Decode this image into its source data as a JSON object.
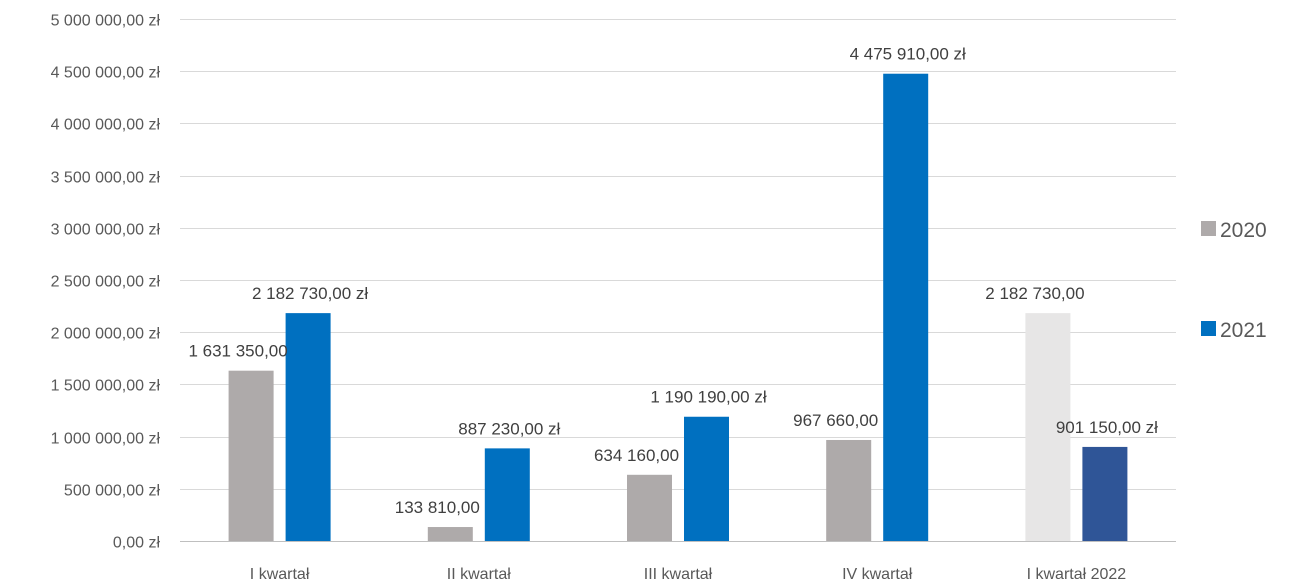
{
  "chart_data": {
    "type": "bar",
    "title": "",
    "xlabel": "",
    "ylabel": "",
    "ylim": [
      0,
      5000000
    ],
    "yticks": [
      0,
      500000,
      1000000,
      1500000,
      2000000,
      2500000,
      3000000,
      3500000,
      4000000,
      4500000,
      5000000
    ],
    "ytick_labels": [
      "0,00 zł",
      "500 000,00 zł",
      "1 000 000,00 zł",
      "1 500 000,00 zł",
      "2 000 000,00 zł",
      "2 500 000,00 zł",
      "3 000 000,00 zł",
      "3 500 000,00 zł",
      "4 000 000,00 zł",
      "4 500 000,00 zł",
      "5 000 000,00 zł"
    ],
    "grid": true,
    "legend_position": "right",
    "categories": [
      "I kwartał",
      "II kwartał",
      "III kwartał",
      "IV kwartał",
      "I kwartał 2022"
    ],
    "series": [
      {
        "name": "2020",
        "color": "#aeaaaa",
        "values": [
          1631350,
          133810,
          634160,
          967660,
          2182730
        ],
        "point_colors": [
          "#aeaaaa",
          "#aeaaaa",
          "#aeaaaa",
          "#aeaaaa",
          "#e7e6e6"
        ],
        "labels": [
          "1 631 350,00",
          "133 810,00",
          "634 160,00",
          "967 660,00",
          "2 182 730,00"
        ]
      },
      {
        "name": "2021",
        "color": "#0070c0",
        "values": [
          2182730,
          887230,
          1190190,
          4475910,
          901150
        ],
        "point_colors": [
          "#0070c0",
          "#0070c0",
          "#0070c0",
          "#0070c0",
          "#2f5597"
        ],
        "labels": [
          "2 182 730,00 zł",
          "887 230,00 zł",
          "1 190 190,00 zł",
          "4 475 910,00 zł",
          "901 150,00 zł"
        ]
      }
    ]
  }
}
